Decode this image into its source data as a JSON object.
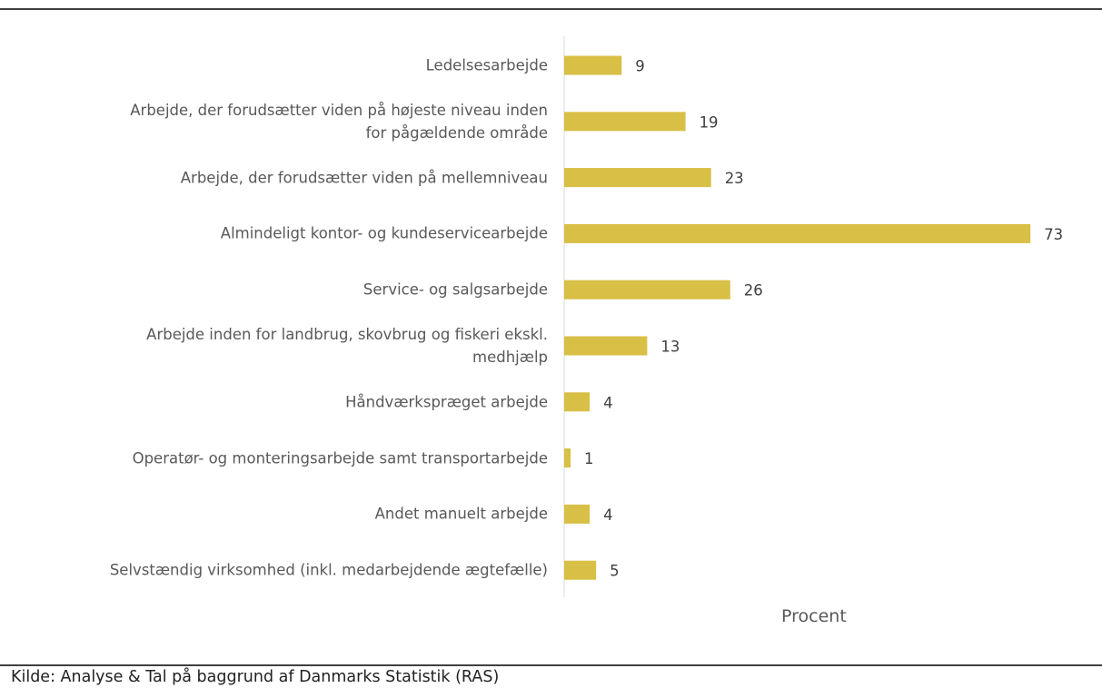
{
  "chart_data": {
    "type": "bar",
    "orientation": "horizontal",
    "categories": [
      "Ledelsesarbejde",
      "Arbejde, der forudsætter viden på højeste niveau inden\nfor pågældende område",
      "Arbejde, der forudsætter viden på mellemniveau",
      "Almindeligt kontor- og kundeservicearbejde",
      "Service- og salgsarbejde",
      "Arbejde inden for landbrug, skovbrug og fiskeri ekskl.\nmedhjælp",
      "Håndværkspræget arbejde",
      "Operatør- og monteringsarbejde samt transportarbejde",
      "Andet manuelt arbejde",
      "Selvstændig virksomhed (inkl. medarbejdende ægtefælle)"
    ],
    "values": [
      9,
      19,
      23,
      73,
      26,
      13,
      4,
      1,
      4,
      5
    ],
    "color": "#d8bf45",
    "xlim": [
      0,
      80
    ],
    "xlabel": "Procent",
    "source": "Kilde: Analyse & Tal på baggrund af Danmarks Statistik (RAS)"
  }
}
